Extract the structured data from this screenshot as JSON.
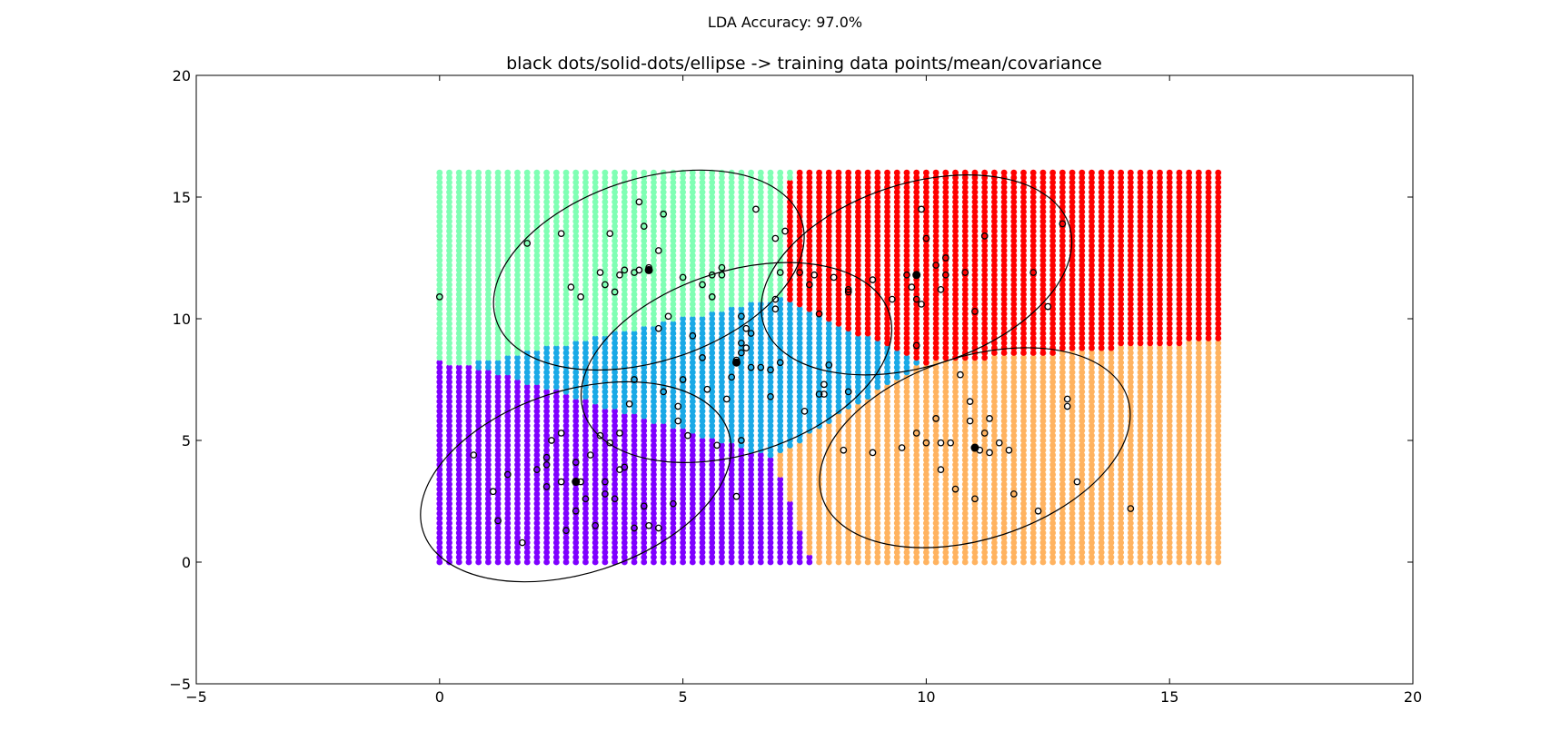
{
  "figure": {
    "suptitle": "LDA Accuracy: 97.0%"
  },
  "chart_data": {
    "type": "scatter",
    "title": "black dots/solid-dots/ellipse -> training data points/mean/covariance",
    "xlabel": "",
    "ylabel": "",
    "xlim": [
      -5,
      20
    ],
    "ylim": [
      -5,
      20
    ],
    "xticks": [
      -5,
      0,
      5,
      10,
      15,
      20
    ],
    "yticks": [
      -5,
      0,
      5,
      10,
      15,
      20
    ],
    "xtick_labels": [
      "−5",
      "0",
      "5",
      "10",
      "15",
      "20"
    ],
    "ytick_labels": [
      "−5",
      "0",
      "5",
      "10",
      "15",
      "20"
    ],
    "grid": false,
    "legend": "none",
    "decision_grid": {
      "x_range": [
        0,
        16
      ],
      "y_range": [
        0,
        16
      ],
      "step": 0.2,
      "colors": {
        "class_1": "#7f00ff",
        "class_2": "#1aa9e6",
        "class_3": "#80ffb4",
        "class_4": "#ff0000",
        "class_5": "#ffb360"
      }
    },
    "classes": [
      {
        "id": "class_1",
        "mean": [
          2.8,
          3.3
        ],
        "covariance_ellipse": {
          "center": [
            2.8,
            3.3
          ],
          "width": 6.6,
          "height": 7.5,
          "angle_deg": 18
        },
        "points": [
          [
            0.7,
            4.4
          ],
          [
            1.1,
            2.9
          ],
          [
            1.2,
            1.7
          ],
          [
            1.4,
            3.6
          ],
          [
            1.7,
            0.8
          ],
          [
            2.2,
            3.1
          ],
          [
            2.2,
            4.3
          ],
          [
            2.2,
            4.0
          ],
          [
            2.3,
            5.0
          ],
          [
            2.5,
            5.3
          ],
          [
            2.5,
            3.3
          ],
          [
            2.6,
            1.3
          ],
          [
            2.8,
            2.1
          ],
          [
            2.8,
            4.1
          ],
          [
            2.9,
            3.3
          ],
          [
            3.0,
            2.6
          ],
          [
            3.1,
            4.4
          ],
          [
            3.2,
            1.5
          ],
          [
            3.3,
            5.2
          ],
          [
            3.4,
            3.3
          ],
          [
            3.4,
            2.8
          ],
          [
            3.5,
            4.9
          ],
          [
            3.6,
            2.6
          ],
          [
            3.7,
            3.8
          ],
          [
            3.7,
            5.3
          ],
          [
            4.0,
            1.4
          ],
          [
            4.2,
            2.3
          ],
          [
            4.3,
            1.5
          ],
          [
            4.5,
            1.4
          ],
          [
            4.8,
            2.4
          ],
          [
            2.0,
            3.8
          ],
          [
            3.8,
            3.9
          ]
        ]
      },
      {
        "id": "class_2",
        "mean": [
          6.1,
          8.2
        ],
        "covariance_ellipse": {
          "center": [
            6.1,
            8.2
          ],
          "width": 6.6,
          "height": 7.5,
          "angle_deg": 18
        },
        "points": [
          [
            3.9,
            6.5
          ],
          [
            4.0,
            7.5
          ],
          [
            4.5,
            9.6
          ],
          [
            4.6,
            7.0
          ],
          [
            4.7,
            10.1
          ],
          [
            4.9,
            6.4
          ],
          [
            4.9,
            5.8
          ],
          [
            5.0,
            7.5
          ],
          [
            5.1,
            5.2
          ],
          [
            5.2,
            9.3
          ],
          [
            5.4,
            8.4
          ],
          [
            5.5,
            7.1
          ],
          [
            5.6,
            10.9
          ],
          [
            5.7,
            4.8
          ],
          [
            5.8,
            11.8
          ],
          [
            5.9,
            6.7
          ],
          [
            6.0,
            7.6
          ],
          [
            6.1,
            8.3
          ],
          [
            6.2,
            10.1
          ],
          [
            6.2,
            9.0
          ],
          [
            6.2,
            8.6
          ],
          [
            6.2,
            5.0
          ],
          [
            6.3,
            9.6
          ],
          [
            6.4,
            9.4
          ],
          [
            6.4,
            8.0
          ],
          [
            6.6,
            8.0
          ],
          [
            6.8,
            6.8
          ],
          [
            6.8,
            7.9
          ],
          [
            6.9,
            10.4
          ],
          [
            6.9,
            10.8
          ],
          [
            7.0,
            8.2
          ],
          [
            7.5,
            6.2
          ],
          [
            7.8,
            6.9
          ],
          [
            7.9,
            7.3
          ],
          [
            7.9,
            6.9
          ],
          [
            8.0,
            8.1
          ],
          [
            8.4,
            7.0
          ],
          [
            6.3,
            8.8
          ]
        ]
      },
      {
        "id": "class_3",
        "mean": [
          4.3,
          12.0
        ],
        "covariance_ellipse": {
          "center": [
            4.3,
            12.0
          ],
          "width": 6.6,
          "height": 7.5,
          "angle_deg": 18
        },
        "points": [
          [
            0.0,
            10.9
          ],
          [
            1.8,
            13.1
          ],
          [
            2.5,
            13.5
          ],
          [
            2.7,
            11.3
          ],
          [
            2.9,
            10.9
          ],
          [
            3.3,
            11.9
          ],
          [
            3.4,
            11.4
          ],
          [
            3.5,
            13.5
          ],
          [
            3.6,
            11.1
          ],
          [
            3.7,
            11.8
          ],
          [
            3.8,
            12.0
          ],
          [
            4.0,
            11.9
          ],
          [
            4.1,
            12.0
          ],
          [
            4.1,
            14.8
          ],
          [
            4.2,
            13.8
          ],
          [
            4.3,
            12.0
          ],
          [
            4.3,
            12.1
          ],
          [
            4.5,
            12.8
          ],
          [
            4.6,
            14.3
          ],
          [
            5.0,
            11.7
          ],
          [
            5.4,
            11.4
          ],
          [
            5.6,
            11.8
          ],
          [
            5.8,
            12.1
          ],
          [
            6.5,
            14.5
          ],
          [
            7.0,
            11.9
          ],
          [
            7.1,
            13.6
          ],
          [
            7.4,
            11.9
          ],
          [
            7.6,
            11.4
          ],
          [
            7.7,
            11.8
          ]
        ]
      },
      {
        "id": "class_4",
        "mean": [
          9.8,
          11.8
        ],
        "covariance_ellipse": {
          "center": [
            9.8,
            11.8
          ],
          "width": 6.6,
          "height": 7.5,
          "angle_deg": 18
        },
        "points": [
          [
            6.9,
            13.3
          ],
          [
            7.8,
            10.2
          ],
          [
            8.1,
            11.7
          ],
          [
            8.4,
            11.2
          ],
          [
            8.4,
            11.1
          ],
          [
            8.9,
            11.6
          ],
          [
            9.3,
            10.8
          ],
          [
            9.6,
            11.8
          ],
          [
            9.7,
            11.3
          ],
          [
            9.8,
            10.8
          ],
          [
            9.8,
            8.9
          ],
          [
            9.9,
            10.6
          ],
          [
            9.9,
            14.5
          ],
          [
            10.0,
            13.3
          ],
          [
            10.2,
            12.2
          ],
          [
            10.3,
            11.2
          ],
          [
            10.4,
            12.5
          ],
          [
            10.4,
            11.8
          ],
          [
            10.8,
            11.9
          ],
          [
            11.0,
            10.3
          ],
          [
            11.2,
            13.4
          ],
          [
            12.2,
            11.9
          ],
          [
            12.5,
            10.5
          ],
          [
            12.8,
            13.9
          ]
        ]
      },
      {
        "id": "class_5",
        "mean": [
          11.0,
          4.7
        ],
        "covariance_ellipse": {
          "center": [
            11.0,
            4.7
          ],
          "width": 6.6,
          "height": 7.5,
          "angle_deg": 18
        },
        "points": [
          [
            8.3,
            4.6
          ],
          [
            8.9,
            4.5
          ],
          [
            9.5,
            4.7
          ],
          [
            9.8,
            5.3
          ],
          [
            10.0,
            4.9
          ],
          [
            10.2,
            5.9
          ],
          [
            10.3,
            3.8
          ],
          [
            10.3,
            4.9
          ],
          [
            10.5,
            4.9
          ],
          [
            10.6,
            3.0
          ],
          [
            10.7,
            7.7
          ],
          [
            10.9,
            6.6
          ],
          [
            10.9,
            5.8
          ],
          [
            11.0,
            2.6
          ],
          [
            11.1,
            4.6
          ],
          [
            11.2,
            5.3
          ],
          [
            11.3,
            5.9
          ],
          [
            11.3,
            4.5
          ],
          [
            11.5,
            4.9
          ],
          [
            11.7,
            4.6
          ],
          [
            11.8,
            2.8
          ],
          [
            12.3,
            2.1
          ],
          [
            12.9,
            6.7
          ],
          [
            12.9,
            6.4
          ],
          [
            13.1,
            3.3
          ],
          [
            14.2,
            2.2
          ],
          [
            6.1,
            2.7
          ]
        ]
      }
    ]
  }
}
